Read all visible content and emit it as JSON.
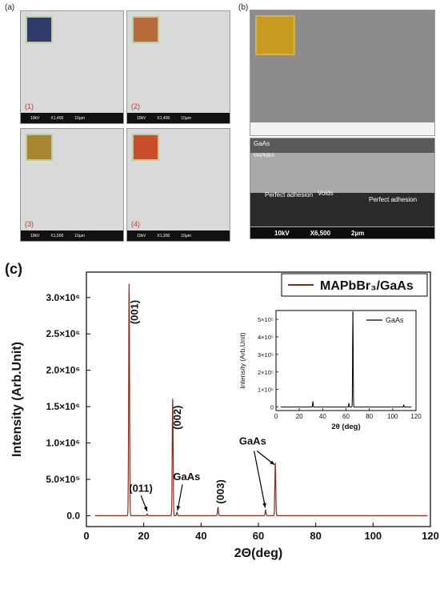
{
  "panel_a": {
    "letter": "(a)",
    "images": [
      {
        "index": "(1)",
        "kv": "10kV",
        "mag": "X1,400",
        "scale": "10µm"
      },
      {
        "index": "(2)",
        "kv": "10kV",
        "mag": "X1,400",
        "scale": "10µm"
      },
      {
        "index": "(3)",
        "kv": "10kV",
        "mag": "X1,500",
        "scale": "10µm"
      },
      {
        "index": "(4)",
        "kv": "10kV",
        "mag": "X1,300",
        "scale": "10µm"
      }
    ]
  },
  "panel_b": {
    "letter": "(b)",
    "cross_section": {
      "layer_top": "GaAs",
      "layer_mid": "MAPbBr3",
      "label_left": "Perfect adhesion",
      "label_mid": "Voids",
      "label_right": "Perfect adhesion",
      "kv": "10kV",
      "mag": "X6,500",
      "scale": "2µm"
    }
  },
  "panel_c": {
    "letter": "(c)",
    "chart_data": {
      "type": "line",
      "xlabel": "2Θ(deg)",
      "ylabel": "Intensity (Arb.Unit)",
      "xlim": [
        0,
        120
      ],
      "ylim": [
        -150000,
        3350000
      ],
      "xticks": [
        0,
        20,
        40,
        60,
        80,
        100,
        120
      ],
      "yticks": [
        {
          "v": 0,
          "label": "0.0"
        },
        {
          "v": 500000,
          "label": "5.0×10⁵"
        },
        {
          "v": 1000000,
          "label": "1.0×10⁶"
        },
        {
          "v": 1500000,
          "label": "1.5×10⁶"
        },
        {
          "v": 2000000,
          "label": "2.0×10⁶"
        },
        {
          "v": 2500000,
          "label": "2.5×10⁶"
        },
        {
          "v": 3000000,
          "label": "3.0×10⁶"
        }
      ],
      "legend": "MAPbBr₃/GaAs",
      "series_color": "#8b2b1a",
      "peaks": [
        {
          "x": 14.9,
          "y": 3180000
        },
        {
          "x": 21.2,
          "y": 22000
        },
        {
          "x": 30.1,
          "y": 1600000
        },
        {
          "x": 31.6,
          "y": 45000
        },
        {
          "x": 45.9,
          "y": 110000
        },
        {
          "x": 62.5,
          "y": 75000
        },
        {
          "x": 65.9,
          "y": 720000
        }
      ],
      "annotations": [
        {
          "text": "(001)",
          "x": 18,
          "y": 2800000,
          "rotate": true
        },
        {
          "text": "(002)",
          "x": 33,
          "y": 1350000,
          "rotate": true
        },
        {
          "text": "(011)",
          "x": 19,
          "y": 330000
        },
        {
          "text": "GaAs",
          "x": 35,
          "y": 490000
        },
        {
          "text": "(003)",
          "x": 48,
          "y": 330000,
          "rotate": true
        },
        {
          "text": "GaAs",
          "x": 58,
          "y": 980000
        }
      ],
      "inset": {
        "legend": "GaAs",
        "xlabel": "2θ (deg)",
        "ylabel": "Intensity (Arb.Unit)",
        "xlim": [
          0,
          120
        ],
        "ylim": [
          -20000,
          550000
        ],
        "xticks": [
          0,
          20,
          40,
          60,
          80,
          100,
          120
        ],
        "yticks": [
          {
            "v": 0,
            "label": "0"
          },
          {
            "v": 100000,
            "label": "1×10⁵"
          },
          {
            "v": 200000,
            "label": "2×10⁵"
          },
          {
            "v": 300000,
            "label": "3×10⁵"
          },
          {
            "v": 400000,
            "label": "4×10⁵"
          },
          {
            "v": 500000,
            "label": "5×10⁵"
          }
        ],
        "peaks": [
          {
            "x": 31.6,
            "y": 30000
          },
          {
            "x": 62.5,
            "y": 20000
          },
          {
            "x": 65.9,
            "y": 545000
          },
          {
            "x": 109.5,
            "y": 12000
          }
        ]
      }
    }
  }
}
